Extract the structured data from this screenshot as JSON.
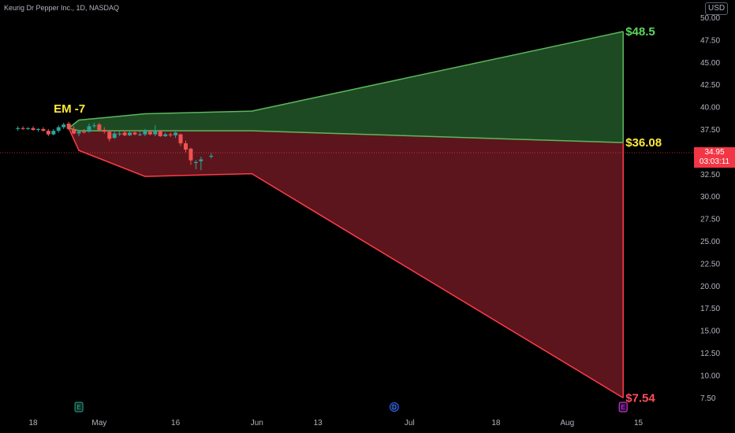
{
  "header": {
    "symbol_title": "Keurig Dr Pepper Inc., 1D, NASDAQ",
    "currency": "USD"
  },
  "last_price": {
    "value": "34.95",
    "countdown": "03:03:11"
  },
  "colors": {
    "up": "#26a69a",
    "down": "#ef5350",
    "upper_fill": "#1e4a23",
    "upper_line": "#5cb85c",
    "lower_fill": "#5c151c",
    "lower_line": "#ff3b4a",
    "label_green": "#5cd65c",
    "label_yellow": "#ffeb3b",
    "label_red": "#ff4d5a"
  },
  "chart_data": {
    "type": "candlestick",
    "title": "Keurig Dr Pepper Inc., 1D, NASDAQ",
    "ylim": [
      5.0,
      50.0
    ],
    "y_ticks": [
      "50.00",
      "47.50",
      "45.00",
      "42.50",
      "40.00",
      "37.50",
      "35.00",
      "32.50",
      "30.00",
      "27.50",
      "25.00",
      "22.50",
      "20.00",
      "17.50",
      "15.00",
      "12.50",
      "10.00",
      "7.50"
    ],
    "x_ticks": [
      {
        "label": "18",
        "day": 0
      },
      {
        "label": "May",
        "day": 13
      },
      {
        "label": "16",
        "day": 28
      },
      {
        "label": "Jun",
        "day": 44
      },
      {
        "label": "13",
        "day": 56
      },
      {
        "label": "Jul",
        "day": 74
      },
      {
        "label": "18",
        "day": 91
      },
      {
        "label": "Aug",
        "day": 105
      },
      {
        "label": "15",
        "day": 119
      }
    ],
    "candles": [
      {
        "day": -3,
        "o": 37.6,
        "h": 37.9,
        "l": 37.4,
        "c": 37.7
      },
      {
        "day": -2,
        "o": 37.7,
        "h": 37.9,
        "l": 37.5,
        "c": 37.6
      },
      {
        "day": -1,
        "o": 37.6,
        "h": 37.8,
        "l": 37.5,
        "c": 37.7
      },
      {
        "day": 0,
        "o": 37.7,
        "h": 37.9,
        "l": 37.4,
        "c": 37.5
      },
      {
        "day": 1,
        "o": 37.5,
        "h": 37.7,
        "l": 37.3,
        "c": 37.6
      },
      {
        "day": 2,
        "o": 37.6,
        "h": 37.8,
        "l": 37.3,
        "c": 37.4
      },
      {
        "day": 3,
        "o": 37.4,
        "h": 37.6,
        "l": 36.8,
        "c": 37.0
      },
      {
        "day": 4,
        "o": 37.0,
        "h": 37.6,
        "l": 36.9,
        "c": 37.4
      },
      {
        "day": 5,
        "o": 37.4,
        "h": 38.0,
        "l": 37.2,
        "c": 37.8
      },
      {
        "day": 6,
        "o": 37.8,
        "h": 38.3,
        "l": 37.6,
        "c": 38.1
      },
      {
        "day": 7,
        "o": 38.2,
        "h": 38.4,
        "l": 37.5,
        "c": 37.6
      },
      {
        "day": 8,
        "o": 37.6,
        "h": 37.9,
        "l": 37.0,
        "c": 37.1
      },
      {
        "day": 9,
        "o": 37.1,
        "h": 37.5,
        "l": 36.8,
        "c": 37.3
      },
      {
        "day": 10,
        "o": 37.3,
        "h": 37.6,
        "l": 37.1,
        "c": 37.2
      },
      {
        "day": 11,
        "o": 37.3,
        "h": 38.2,
        "l": 37.2,
        "c": 37.9
      },
      {
        "day": 12,
        "o": 37.9,
        "h": 38.3,
        "l": 37.7,
        "c": 38.0
      },
      {
        "day": 13,
        "o": 38.1,
        "h": 38.3,
        "l": 37.3,
        "c": 37.5
      },
      {
        "day": 14,
        "o": 37.5,
        "h": 37.8,
        "l": 37.1,
        "c": 37.3
      },
      {
        "day": 15,
        "o": 37.3,
        "h": 37.5,
        "l": 36.2,
        "c": 36.5
      },
      {
        "day": 16,
        "o": 36.6,
        "h": 37.3,
        "l": 36.5,
        "c": 37.1
      },
      {
        "day": 17,
        "o": 37.0,
        "h": 37.4,
        "l": 36.8,
        "c": 37.1
      },
      {
        "day": 18,
        "o": 37.2,
        "h": 37.4,
        "l": 36.8,
        "c": 36.9
      },
      {
        "day": 19,
        "o": 36.9,
        "h": 37.3,
        "l": 36.8,
        "c": 37.2
      },
      {
        "day": 20,
        "o": 37.2,
        "h": 37.4,
        "l": 36.9,
        "c": 37.0
      },
      {
        "day": 21,
        "o": 37.0,
        "h": 37.3,
        "l": 36.8,
        "c": 37.0
      },
      {
        "day": 22,
        "o": 37.0,
        "h": 37.6,
        "l": 36.8,
        "c": 37.4
      },
      {
        "day": 23,
        "o": 37.3,
        "h": 37.5,
        "l": 36.9,
        "c": 37.0
      },
      {
        "day": 24,
        "o": 37.0,
        "h": 38.0,
        "l": 36.8,
        "c": 37.4
      },
      {
        "day": 25,
        "o": 37.4,
        "h": 37.5,
        "l": 36.7,
        "c": 36.8
      },
      {
        "day": 26,
        "o": 36.8,
        "h": 37.2,
        "l": 36.7,
        "c": 37.0
      },
      {
        "day": 27,
        "o": 37.0,
        "h": 37.2,
        "l": 36.7,
        "c": 36.9
      },
      {
        "day": 28,
        "o": 36.9,
        "h": 37.3,
        "l": 36.6,
        "c": 37.2
      },
      {
        "day": 29,
        "o": 37.0,
        "h": 37.1,
        "l": 35.7,
        "c": 36.0
      },
      {
        "day": 30,
        "o": 36.0,
        "h": 36.3,
        "l": 35.0,
        "c": 35.3
      },
      {
        "day": 31,
        "o": 35.4,
        "h": 35.5,
        "l": 33.6,
        "c": 34.1
      },
      {
        "day": 32,
        "o": 33.8,
        "h": 34.1,
        "l": 33.1,
        "c": 33.9
      },
      {
        "day": 33,
        "o": 34.0,
        "h": 34.5,
        "l": 33.0,
        "c": 34.2
      },
      {
        "day": 35,
        "o": 34.5,
        "h": 34.9,
        "l": 34.3,
        "c": 34.6
      }
    ],
    "upper_band": [
      [
        7,
        37.7
      ],
      [
        9,
        38.6
      ],
      [
        22,
        39.3
      ],
      [
        43,
        39.6
      ],
      [
        116,
        48.5
      ]
    ],
    "middle_line": [
      [
        7,
        37.7
      ],
      [
        9,
        37.4
      ],
      [
        43,
        37.4
      ],
      [
        116,
        36.08
      ]
    ],
    "lower_band": [
      [
        7,
        37.7
      ],
      [
        9,
        35.2
      ],
      [
        22,
        32.3
      ],
      [
        43,
        32.6
      ],
      [
        116,
        7.54
      ]
    ],
    "last_price_line": 34.95,
    "annotations": [
      {
        "text": "EM -7",
        "day": 7,
        "price": 38.9
      },
      {
        "text": "$48.5",
        "day": 116,
        "price": 48.5
      },
      {
        "text": "$36.08",
        "day": 116,
        "price": 36.08
      },
      {
        "text": "$7.54",
        "day": 116,
        "price": 7.54
      }
    ],
    "events": [
      {
        "label": "E",
        "day": 9,
        "type": "earnings-past"
      },
      {
        "label": "D",
        "day": 71,
        "type": "dividend"
      },
      {
        "label": "E",
        "day": 116,
        "type": "earnings-future"
      }
    ]
  }
}
